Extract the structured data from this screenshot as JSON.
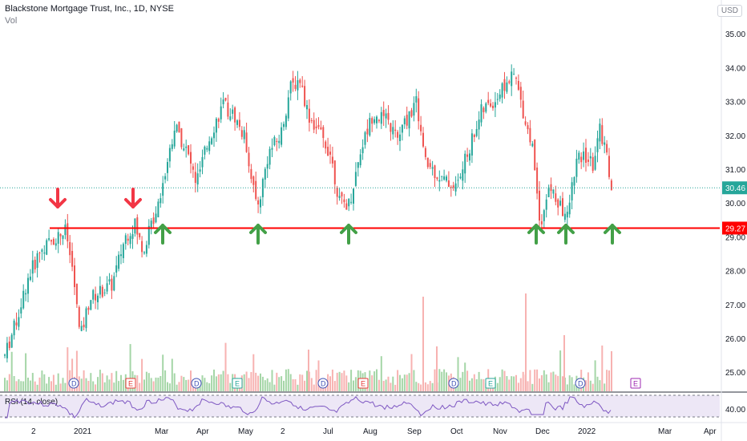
{
  "header": {
    "title": "Blackstone Mortgage Trust, Inc., 1D, NYSE",
    "volume_label": "Vol",
    "currency": "USD"
  },
  "colors": {
    "up": "#26a69a",
    "down": "#ef5350",
    "vol_up": "#a5d6a7",
    "vol_down": "#f7b2b1",
    "level_line": "#ff0000",
    "arrow_red": "#f23645",
    "arrow_green": "#43a047",
    "rsi_line": "#7e57c2",
    "rsi_band": "#ede7f6",
    "dotted_price": "#26a69a"
  },
  "chart_data": [
    {
      "type": "candlestick",
      "title": "Blackstone Mortgage Trust, Inc., 1D, NYSE",
      "ylim": [
        24.6,
        35.3
      ],
      "y_ticks": [
        "35.00",
        "34.00",
        "33.00",
        "32.00",
        "31.00",
        "30.00",
        "29.00",
        "28.00",
        "27.00",
        "26.00",
        "25.00"
      ],
      "x_ticks": [
        "2",
        "2021",
        "Mar",
        "Apr",
        "May",
        "2",
        "Jul",
        "Aug",
        "Sep",
        "Oct",
        "Nov",
        "Dec",
        "2022",
        "Mar",
        "Apr"
      ],
      "price_labels": {
        "last": "30.46",
        "level": "29.27"
      },
      "level": 29.27,
      "last": 30.46,
      "event_markers": [
        {
          "label": "D",
          "type": "dividend"
        },
        {
          "label": "E",
          "type": "earnings"
        },
        {
          "label": "D",
          "type": "dividend"
        },
        {
          "label": "E",
          "type": "earnings"
        },
        {
          "label": "D",
          "type": "dividend"
        },
        {
          "label": "E",
          "type": "earnings"
        },
        {
          "label": "D",
          "type": "dividend"
        },
        {
          "label": "E",
          "type": "earnings"
        },
        {
          "label": "D",
          "type": "dividend"
        },
        {
          "label": "E",
          "type": "earnings"
        }
      ],
      "arrows": [
        {
          "dir": "down",
          "price": 29.8
        },
        {
          "dir": "down",
          "price": 29.8
        },
        {
          "dir": "up",
          "price": 28.8
        },
        {
          "dir": "up",
          "price": 28.7
        },
        {
          "dir": "up",
          "price": 28.8
        },
        {
          "dir": "up",
          "price": 28.8
        },
        {
          "dir": "up",
          "price": 28.75
        },
        {
          "dir": "up",
          "price": 28.75
        }
      ]
    },
    {
      "type": "line",
      "title": "RSI (14, close)",
      "y_ticks": [
        "40.00"
      ]
    }
  ]
}
